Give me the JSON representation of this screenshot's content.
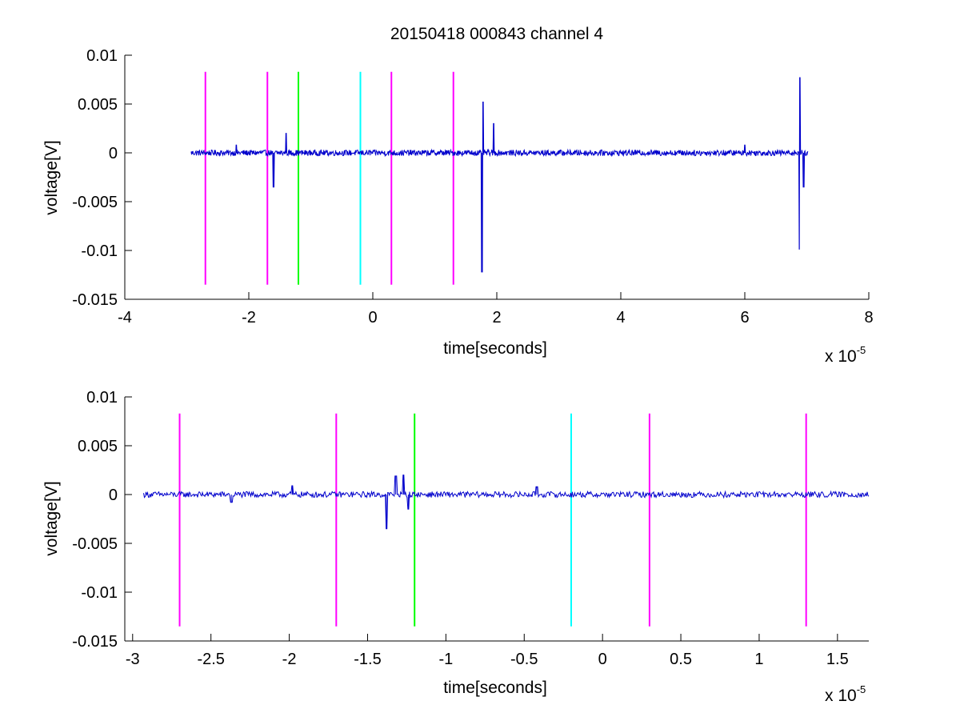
{
  "figure": {
    "title": "20150418 000843 channel 4",
    "background": "#ffffff",
    "axis_color": "#000000"
  },
  "chart_data": [
    {
      "type": "line",
      "title": "20150418 000843 channel 4",
      "xlabel": "time[seconds]",
      "ylabel": "voltage[V]",
      "x_exponent_label": "x 10",
      "x_exponent_power": "-5",
      "x_scale": 1e-05,
      "xlim": [
        -4,
        8
      ],
      "ylim": [
        -0.015,
        0.01
      ],
      "xticks": [
        -4,
        -2,
        0,
        2,
        4,
        6,
        8
      ],
      "xtick_labels": [
        "-4",
        "-2",
        "0",
        "2",
        "4",
        "6",
        "8"
      ],
      "yticks": [
        0.01,
        0.005,
        0,
        -0.005,
        -0.01,
        -0.015
      ],
      "ytick_labels": [
        "0.01",
        "0.005",
        "0",
        "-0.005",
        "-0.01",
        "-0.015"
      ],
      "grid": false,
      "signal": {
        "color": "#0000cc",
        "x_range": [
          -2.93,
          7.02
        ],
        "baseline": 0.0,
        "noise_amplitude": 0.0003,
        "features": [
          {
            "x": -2.2,
            "y": 0.0008
          },
          {
            "x": -1.6,
            "y": -0.0035
          },
          {
            "x": -1.4,
            "y": 0.002
          },
          {
            "x": 1.76,
            "y": -0.0122
          },
          {
            "x": 1.78,
            "y": 0.0052
          },
          {
            "x": 1.95,
            "y": 0.003
          },
          {
            "x": 6.0,
            "y": 0.0008
          },
          {
            "x": 6.88,
            "y": -0.0099
          },
          {
            "x": 6.89,
            "y": 0.0077
          },
          {
            "x": 6.95,
            "y": -0.0035
          }
        ]
      },
      "markers": [
        {
          "x": -2.7,
          "y_top": 0.0083,
          "y_bottom": -0.0135,
          "color": "#ff00ff"
        },
        {
          "x": -1.7,
          "y_top": 0.0083,
          "y_bottom": -0.0135,
          "color": "#ff00ff"
        },
        {
          "x": -1.2,
          "y_top": 0.0083,
          "y_bottom": -0.0135,
          "color": "#00ff00"
        },
        {
          "x": -0.2,
          "y_top": 0.0083,
          "y_bottom": -0.0135,
          "color": "#00ffff"
        },
        {
          "x": 0.3,
          "y_top": 0.0083,
          "y_bottom": -0.0135,
          "color": "#ff00ff"
        },
        {
          "x": 1.3,
          "y_top": 0.0083,
          "y_bottom": -0.0135,
          "color": "#ff00ff"
        }
      ]
    },
    {
      "type": "line",
      "xlabel": "time[seconds]",
      "ylabel": "voltage[V]",
      "x_exponent_label": "x 10",
      "x_exponent_power": "-5",
      "x_scale": 1e-05,
      "xlim": [
        -3.05,
        1.7
      ],
      "ylim": [
        -0.015,
        0.01
      ],
      "xticks": [
        -3,
        -2.5,
        -2,
        -1.5,
        -1,
        -0.5,
        0,
        0.5,
        1,
        1.5
      ],
      "xtick_labels": [
        "-3",
        "-2.5",
        "-2",
        "-1.5",
        "-1",
        "-0.5",
        "0",
        "0.5",
        "1",
        "1.5"
      ],
      "yticks": [
        0.01,
        0.005,
        0,
        -0.005,
        -0.01,
        -0.015
      ],
      "ytick_labels": [
        "0.01",
        "0.005",
        "0",
        "-0.005",
        "-0.01",
        "-0.015"
      ],
      "grid": false,
      "signal": {
        "color": "#0000cc",
        "x_range": [
          -2.93,
          1.7
        ],
        "baseline": 0.0,
        "noise_amplitude": 0.0003,
        "features": [
          {
            "x": -2.37,
            "y": -0.0008
          },
          {
            "x": -1.98,
            "y": 0.0009
          },
          {
            "x": -1.38,
            "y": -0.0035
          },
          {
            "x": -1.32,
            "y": 0.0019
          },
          {
            "x": -1.27,
            "y": 0.002
          },
          {
            "x": -1.24,
            "y": -0.0015
          },
          {
            "x": -0.42,
            "y": 0.0008
          }
        ]
      },
      "markers": [
        {
          "x": -2.7,
          "y_top": 0.0083,
          "y_bottom": -0.0135,
          "color": "#ff00ff"
        },
        {
          "x": -1.7,
          "y_top": 0.0083,
          "y_bottom": -0.0135,
          "color": "#ff00ff"
        },
        {
          "x": -1.2,
          "y_top": 0.0083,
          "y_bottom": -0.0135,
          "color": "#00ff00"
        },
        {
          "x": -0.2,
          "y_top": 0.0083,
          "y_bottom": -0.0135,
          "color": "#00ffff"
        },
        {
          "x": 0.3,
          "y_top": 0.0083,
          "y_bottom": -0.0135,
          "color": "#ff00ff"
        },
        {
          "x": 1.3,
          "y_top": 0.0083,
          "y_bottom": -0.0135,
          "color": "#ff00ff"
        }
      ]
    }
  ]
}
